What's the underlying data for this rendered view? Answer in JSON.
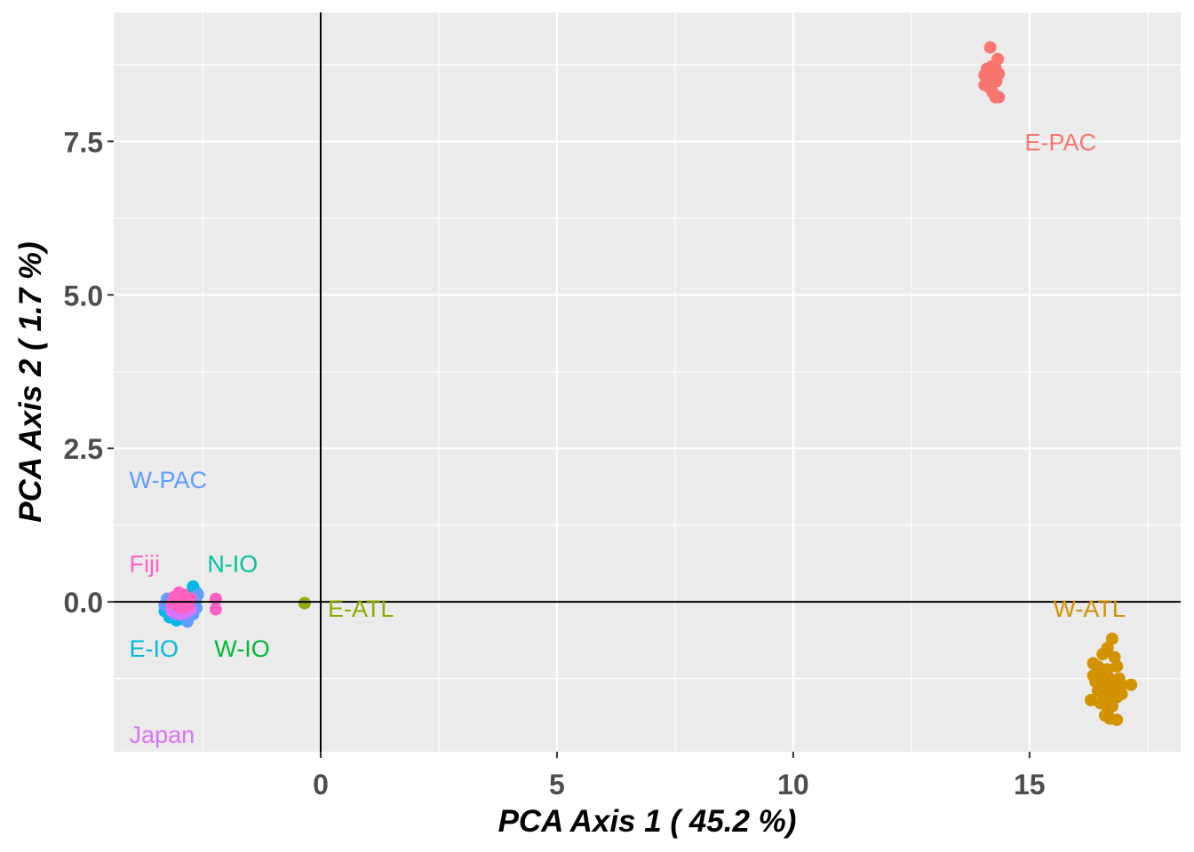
{
  "chart_data": {
    "type": "scatter",
    "title": "",
    "xlabel": "PCA Axis 1 ( 45.2 %)",
    "ylabel": "PCA Axis 2 ( 1.7 %)",
    "xlim": [
      -4.38,
      18.2
    ],
    "ylim": [
      -2.44,
      9.6
    ],
    "x_ticks": [
      0,
      5,
      10,
      15
    ],
    "x_tick_labels": [
      "0",
      "5",
      "10",
      "15"
    ],
    "y_ticks": [
      0.0,
      2.5,
      5.0,
      7.5
    ],
    "y_tick_labels": [
      "0.0",
      "2.5",
      "5.0",
      "7.5"
    ],
    "grid": true,
    "reference_lines": {
      "x": 0,
      "y": 0
    },
    "legend": "none",
    "series": [
      {
        "name": "E-PAC",
        "color": "#F8766D",
        "label": {
          "text": "E-PAC",
          "x": 14.9,
          "y": 7.5
        },
        "points": [
          [
            14.17,
            9.03
          ],
          [
            14.33,
            8.84
          ],
          [
            14.1,
            8.68
          ],
          [
            14.2,
            8.72
          ],
          [
            14.28,
            8.7
          ],
          [
            14.05,
            8.58
          ],
          [
            14.15,
            8.6
          ],
          [
            14.25,
            8.55
          ],
          [
            14.35,
            8.6
          ],
          [
            14.1,
            8.5
          ],
          [
            14.2,
            8.45
          ],
          [
            14.3,
            8.48
          ],
          [
            14.05,
            8.42
          ],
          [
            14.15,
            8.38
          ],
          [
            14.22,
            8.3
          ],
          [
            14.28,
            8.22
          ],
          [
            14.35,
            8.22
          ],
          [
            14.18,
            8.52
          ]
        ]
      },
      {
        "name": "W-ATL",
        "color": "#D39200",
        "label": {
          "text": "W-ATL",
          "x": 15.5,
          "y": -0.1
        },
        "points": [
          [
            16.75,
            -0.6
          ],
          [
            16.65,
            -0.75
          ],
          [
            16.55,
            -0.85
          ],
          [
            16.8,
            -0.9
          ],
          [
            16.35,
            -1.0
          ],
          [
            16.45,
            -1.05
          ],
          [
            16.65,
            -1.1
          ],
          [
            16.85,
            -1.05
          ],
          [
            16.35,
            -1.2
          ],
          [
            16.55,
            -1.2
          ],
          [
            16.7,
            -1.25
          ],
          [
            16.9,
            -1.25
          ],
          [
            16.5,
            -1.35
          ],
          [
            16.65,
            -1.4
          ],
          [
            16.8,
            -1.4
          ],
          [
            16.95,
            -1.35
          ],
          [
            17.15,
            -1.35
          ],
          [
            16.55,
            -1.5
          ],
          [
            16.7,
            -1.55
          ],
          [
            16.85,
            -1.55
          ],
          [
            16.6,
            -1.65
          ],
          [
            16.75,
            -1.7
          ],
          [
            16.3,
            -1.6
          ],
          [
            16.5,
            -1.65
          ],
          [
            16.65,
            -1.8
          ],
          [
            16.7,
            -1.9
          ],
          [
            16.85,
            -1.92
          ],
          [
            16.6,
            -1.85
          ],
          [
            16.95,
            -1.5
          ],
          [
            16.45,
            -1.45
          ],
          [
            16.4,
            -1.3
          ],
          [
            16.75,
            -1.3
          ]
        ]
      },
      {
        "name": "E-ATL",
        "color": "#93AA00",
        "label": {
          "text": "E-ATL",
          "x": 0.15,
          "y": -0.1
        },
        "points": [
          [
            -0.34,
            -0.02
          ]
        ]
      },
      {
        "name": "W-IO",
        "color": "#00BA38",
        "label": {
          "text": "W-IO",
          "x": -2.25,
          "y": -0.75
        },
        "points": [
          [
            -2.75,
            0.12
          ],
          [
            -2.65,
            0.05
          ],
          [
            -3.05,
            0.0
          ]
        ]
      },
      {
        "name": "N-IO",
        "color": "#00C19F",
        "label": {
          "text": "N-IO",
          "x": -2.4,
          "y": 0.63
        },
        "points": [
          [
            -2.8,
            0.08
          ],
          [
            -2.7,
            -0.05
          ]
        ]
      },
      {
        "name": "E-IO",
        "color": "#00B9E3",
        "label": {
          "text": "E-IO",
          "x": -4.05,
          "y": -0.75
        },
        "points": [
          [
            -2.7,
            0.25
          ],
          [
            -2.62,
            0.15
          ],
          [
            -3.3,
            -0.05
          ],
          [
            -3.3,
            -0.15
          ],
          [
            -3.05,
            -0.3
          ],
          [
            -2.9,
            -0.28
          ],
          [
            -3.2,
            -0.25
          ],
          [
            -2.65,
            0.0
          ],
          [
            -3.2,
            0.05
          ],
          [
            -2.8,
            -0.2
          ]
        ]
      },
      {
        "name": "W-PAC",
        "color": "#619CFF",
        "label": {
          "text": "W-PAC",
          "x": -4.05,
          "y": 2.0
        },
        "points": [
          [
            -2.6,
            0.12
          ],
          [
            -2.63,
            -0.1
          ],
          [
            -2.7,
            -0.2
          ],
          [
            -2.82,
            -0.32
          ],
          [
            -2.95,
            -0.22
          ],
          [
            -3.3,
            -0.05
          ],
          [
            -3.25,
            0.05
          ],
          [
            -3.1,
            -0.2
          ],
          [
            -2.75,
            0.05
          ]
        ]
      },
      {
        "name": "Japan",
        "color": "#DB72FB",
        "label": {
          "text": "Japan",
          "x": -4.05,
          "y": -2.15
        },
        "points": [
          [
            -3.15,
            -0.15
          ],
          [
            -3.0,
            -0.2
          ],
          [
            -2.85,
            -0.18
          ],
          [
            -2.75,
            -0.12
          ],
          [
            -3.1,
            -0.08
          ]
        ]
      },
      {
        "name": "Fiji",
        "color": "#FF61C3",
        "label": {
          "text": "Fiji",
          "x": -4.05,
          "y": 0.63
        },
        "points": [
          [
            -3.0,
            0.15
          ],
          [
            -2.9,
            0.12
          ],
          [
            -3.1,
            0.08
          ],
          [
            -2.95,
            0.05
          ],
          [
            -3.05,
            0.0
          ],
          [
            -2.85,
            0.0
          ],
          [
            -2.75,
            0.05
          ],
          [
            -3.15,
            -0.02
          ],
          [
            -3.0,
            -0.08
          ],
          [
            -2.9,
            -0.1
          ],
          [
            -2.8,
            -0.05
          ],
          [
            -2.22,
            0.05
          ],
          [
            -2.22,
            -0.12
          ]
        ]
      }
    ]
  }
}
